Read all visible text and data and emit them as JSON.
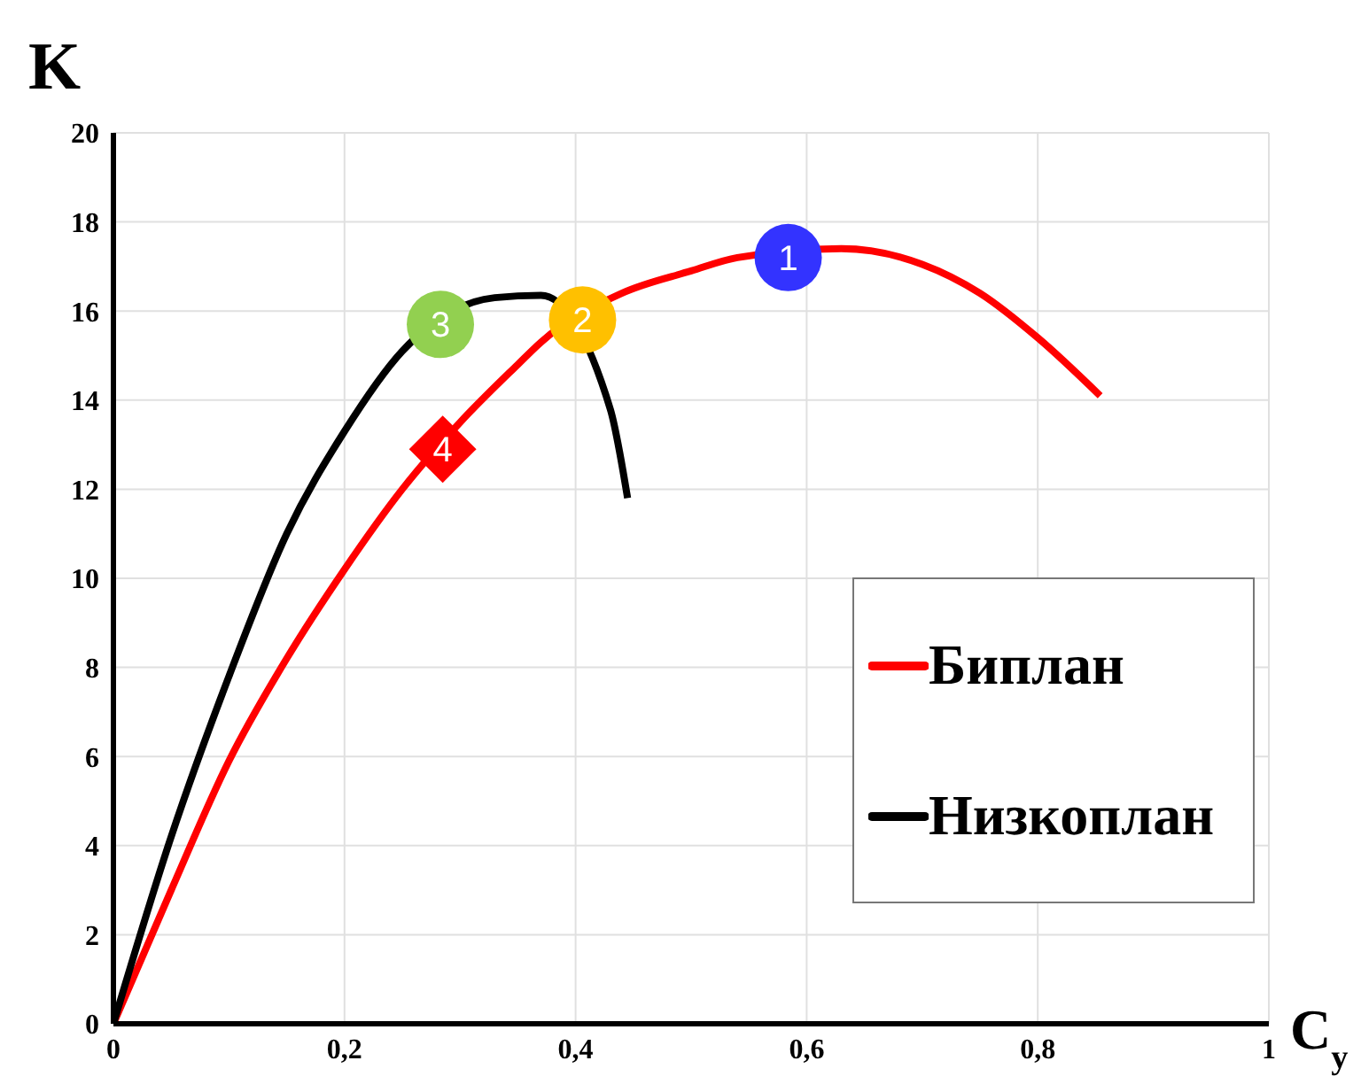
{
  "chart_data": {
    "type": "line",
    "xlabel": "C$_{y}$",
    "ylabel": "K",
    "xlim": [
      0,
      1
    ],
    "ylim": [
      0,
      20
    ],
    "xticks": [
      0,
      {
        "value": 0.2,
        "label": "0,2"
      },
      {
        "value": 0.4,
        "label": "0,4"
      },
      {
        "value": 0.6,
        "label": "0,6"
      },
      {
        "value": 0.8,
        "label": "0,8"
      },
      1
    ],
    "yticks": [
      0,
      2,
      4,
      6,
      8,
      10,
      12,
      14,
      16,
      18,
      20
    ],
    "grid": true,
    "legend": "bottom right",
    "line_style": "solid",
    "annotations": [
      {
        "text": "1",
        "x": 0.584,
        "y": 17.2
      },
      {
        "text": "2",
        "x": 0.406,
        "y": 15.8
      },
      {
        "text": "3",
        "x": 0.283,
        "y": 15.7
      },
      {
        "text": "4",
        "x": 0.285,
        "y": 12.9
      }
    ],
    "series": [
      {
        "name": "Биплан",
        "color": "#ff0000",
        "x": [
          0,
          0.05,
          0.1,
          0.15,
          0.2,
          0.25,
          0.3,
          0.35,
          0.37,
          0.44,
          0.5,
          0.54,
          0.63,
          0.7,
          0.75,
          0.8,
          0.854
        ],
        "values": [
          0,
          3.0,
          5.9,
          8.2,
          10.2,
          12.0,
          13.5,
          14.8,
          15.3,
          16.4,
          16.9,
          17.2,
          17.4,
          17.05,
          16.4,
          15.4,
          14.1
        ]
      },
      {
        "name": "Низкоплан",
        "color": "#000000",
        "x": [
          0,
          0.05,
          0.1,
          0.15,
          0.2,
          0.25,
          0.33,
          0.37,
          0.43,
          0.445
        ],
        "values": [
          0,
          4.2,
          7.8,
          11.0,
          13.3,
          15.1,
          16.3,
          16.35,
          13.8,
          11.8
        ]
      },
      {
        "type": "scatter",
        "color": "#3333ff",
        "marker": "circle",
        "x": [
          0.584
        ],
        "values": [
          17.2
        ]
      },
      {
        "type": "scatter",
        "color": "#ffc000",
        "marker": "circle",
        "x": [
          0.406
        ],
        "values": [
          15.8
        ]
      },
      {
        "type": "scatter",
        "color": "#92d050",
        "marker": "circle",
        "x": [
          0.283
        ],
        "values": [
          15.7
        ]
      },
      {
        "type": "scatter",
        "color": "#ff0000",
        "marker": "diamond",
        "x": [
          0.285
        ],
        "values": [
          12.9
        ]
      }
    ]
  }
}
